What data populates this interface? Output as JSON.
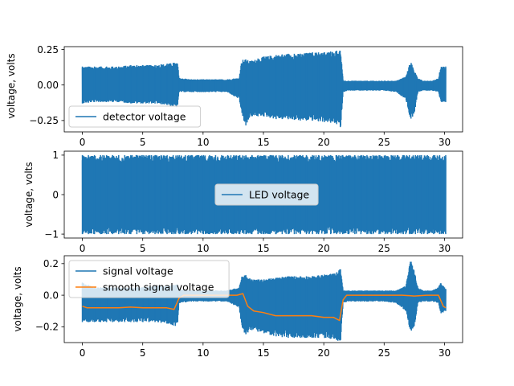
{
  "chart_data": [
    {
      "type": "line",
      "title": "",
      "xlabel": "",
      "ylabel": "voltage, volts",
      "xlim": [
        -1.5,
        31.5
      ],
      "ylim": [
        -0.33,
        0.27
      ],
      "xticks": [
        "0",
        "5",
        "10",
        "15",
        "20",
        "25",
        "30"
      ],
      "yticks": [
        "−0.25",
        "0.00",
        "0.25"
      ],
      "ytick_values": [
        -0.25,
        0.0,
        0.25
      ],
      "legend_position": "lower-left",
      "series": [
        {
          "name": "detector voltage",
          "color": "#1f77b4",
          "style": "noisy-envelope",
          "x": [
            0,
            1,
            2,
            3,
            4,
            5,
            6,
            7,
            7.9,
            8.0,
            9,
            10,
            11,
            12,
            13,
            13.2,
            13.5,
            14,
            15,
            16,
            17,
            18,
            19,
            20,
            21,
            21.4,
            21.6,
            22,
            23,
            24,
            25,
            26,
            26.8,
            27.2,
            27.5,
            27.8,
            28.2,
            29.0,
            29.5,
            29.7,
            30.1
          ],
          "upper": [
            0.13,
            0.13,
            0.13,
            0.13,
            0.14,
            0.14,
            0.14,
            0.15,
            0.16,
            0.05,
            0.04,
            0.04,
            0.04,
            0.04,
            0.05,
            0.18,
            0.18,
            0.17,
            0.2,
            0.21,
            0.22,
            0.22,
            0.23,
            0.23,
            0.24,
            0.25,
            0.03,
            0.03,
            0.03,
            0.03,
            0.03,
            0.03,
            0.06,
            0.17,
            0.1,
            0.05,
            0.03,
            0.03,
            0.05,
            0.13,
            0.13
          ],
          "lower": [
            -0.13,
            -0.12,
            -0.12,
            -0.12,
            -0.13,
            -0.13,
            -0.13,
            -0.14,
            -0.16,
            -0.05,
            -0.05,
            -0.05,
            -0.05,
            -0.05,
            -0.1,
            -0.2,
            -0.29,
            -0.22,
            -0.22,
            -0.24,
            -0.24,
            -0.25,
            -0.25,
            -0.26,
            -0.27,
            -0.3,
            -0.05,
            -0.04,
            -0.04,
            -0.04,
            -0.04,
            -0.05,
            -0.1,
            -0.25,
            -0.2,
            -0.05,
            -0.04,
            -0.04,
            -0.05,
            -0.12,
            -0.12
          ]
        }
      ]
    },
    {
      "type": "line",
      "title": "",
      "xlabel": "",
      "ylabel": "voltage, volts",
      "xlim": [
        -1.5,
        31.5
      ],
      "ylim": [
        -1.1,
        1.1
      ],
      "xticks": [
        "0",
        "5",
        "10",
        "15",
        "20",
        "25",
        "30"
      ],
      "yticks": [
        "−1",
        "0",
        "1"
      ],
      "ytick_values": [
        -1,
        0,
        1
      ],
      "legend_position": "center",
      "series": [
        {
          "name": "LED voltage",
          "color": "#1f77b4",
          "style": "noisy-envelope",
          "x": [
            0,
            30.1
          ],
          "upper": [
            1.0,
            1.0
          ],
          "lower": [
            -1.0,
            -1.0
          ]
        }
      ]
    },
    {
      "type": "line",
      "title": "",
      "xlabel": "",
      "ylabel": "voltage, volts",
      "xlim": [
        -1.5,
        31.5
      ],
      "ylim": [
        -0.3,
        0.25
      ],
      "xticks": [
        "0",
        "5",
        "10",
        "15",
        "20",
        "25",
        "30"
      ],
      "yticks": [
        "−0.2",
        "0.0",
        "0.2"
      ],
      "ytick_values": [
        -0.2,
        0.0,
        0.2
      ],
      "legend_position": "upper-left",
      "series": [
        {
          "name": "signal voltage",
          "color": "#1f77b4",
          "style": "noisy-envelope",
          "x": [
            0,
            1,
            2,
            3,
            4,
            5,
            6,
            7,
            7.9,
            8.0,
            9,
            10,
            11,
            12,
            13,
            13.2,
            13.5,
            14,
            15,
            16,
            17,
            18,
            19,
            20,
            21,
            21.4,
            21.6,
            22,
            23,
            24,
            25,
            26,
            26.8,
            27.2,
            27.5,
            27.8,
            28.2,
            29.0,
            29.5,
            29.7,
            30.1
          ],
          "upper": [
            0.08,
            0.05,
            0.05,
            0.05,
            0.05,
            0.05,
            0.06,
            0.06,
            0.07,
            0.04,
            0.03,
            0.03,
            0.03,
            0.03,
            0.05,
            0.12,
            0.13,
            0.1,
            0.1,
            0.11,
            0.12,
            0.12,
            0.12,
            0.13,
            0.14,
            0.17,
            0.03,
            0.03,
            0.03,
            0.03,
            0.03,
            0.03,
            0.06,
            0.23,
            0.15,
            0.05,
            0.03,
            0.03,
            0.05,
            0.08,
            0.04
          ],
          "lower": [
            -0.17,
            -0.17,
            -0.17,
            -0.17,
            -0.17,
            -0.17,
            -0.17,
            -0.18,
            -0.2,
            -0.05,
            -0.04,
            -0.04,
            -0.04,
            -0.04,
            -0.08,
            -0.2,
            -0.25,
            -0.22,
            -0.24,
            -0.26,
            -0.27,
            -0.27,
            -0.27,
            -0.27,
            -0.28,
            -0.3,
            -0.05,
            -0.04,
            -0.04,
            -0.04,
            -0.04,
            -0.05,
            -0.1,
            -0.24,
            -0.2,
            -0.05,
            -0.04,
            -0.04,
            -0.05,
            -0.12,
            -0.1
          ]
        },
        {
          "name": "smooth signal voltage",
          "color": "#ff7f0e",
          "style": "line",
          "x": [
            0,
            0.4,
            1,
            2,
            3,
            4,
            5,
            6,
            7,
            7.6,
            8.0,
            8.4,
            9,
            10,
            11,
            12,
            12.8,
            13.3,
            13.7,
            14.2,
            15,
            16,
            17,
            18,
            19,
            20,
            20.8,
            21.3,
            21.6,
            21.9,
            23,
            25,
            26.5,
            27.5,
            28.5,
            29.5,
            29.9,
            30.1
          ],
          "y": [
            -0.07,
            -0.08,
            -0.08,
            -0.08,
            -0.08,
            -0.075,
            -0.08,
            -0.08,
            -0.08,
            -0.09,
            -0.02,
            0.0,
            0.0,
            0.0,
            0.0,
            0.0,
            0.0,
            0.01,
            -0.07,
            -0.1,
            -0.11,
            -0.13,
            -0.13,
            -0.13,
            -0.13,
            -0.14,
            -0.14,
            -0.16,
            -0.03,
            0.0,
            0.0,
            0.0,
            0.0,
            -0.005,
            0.0,
            0.0,
            -0.07,
            -0.08
          ]
        }
      ]
    }
  ]
}
